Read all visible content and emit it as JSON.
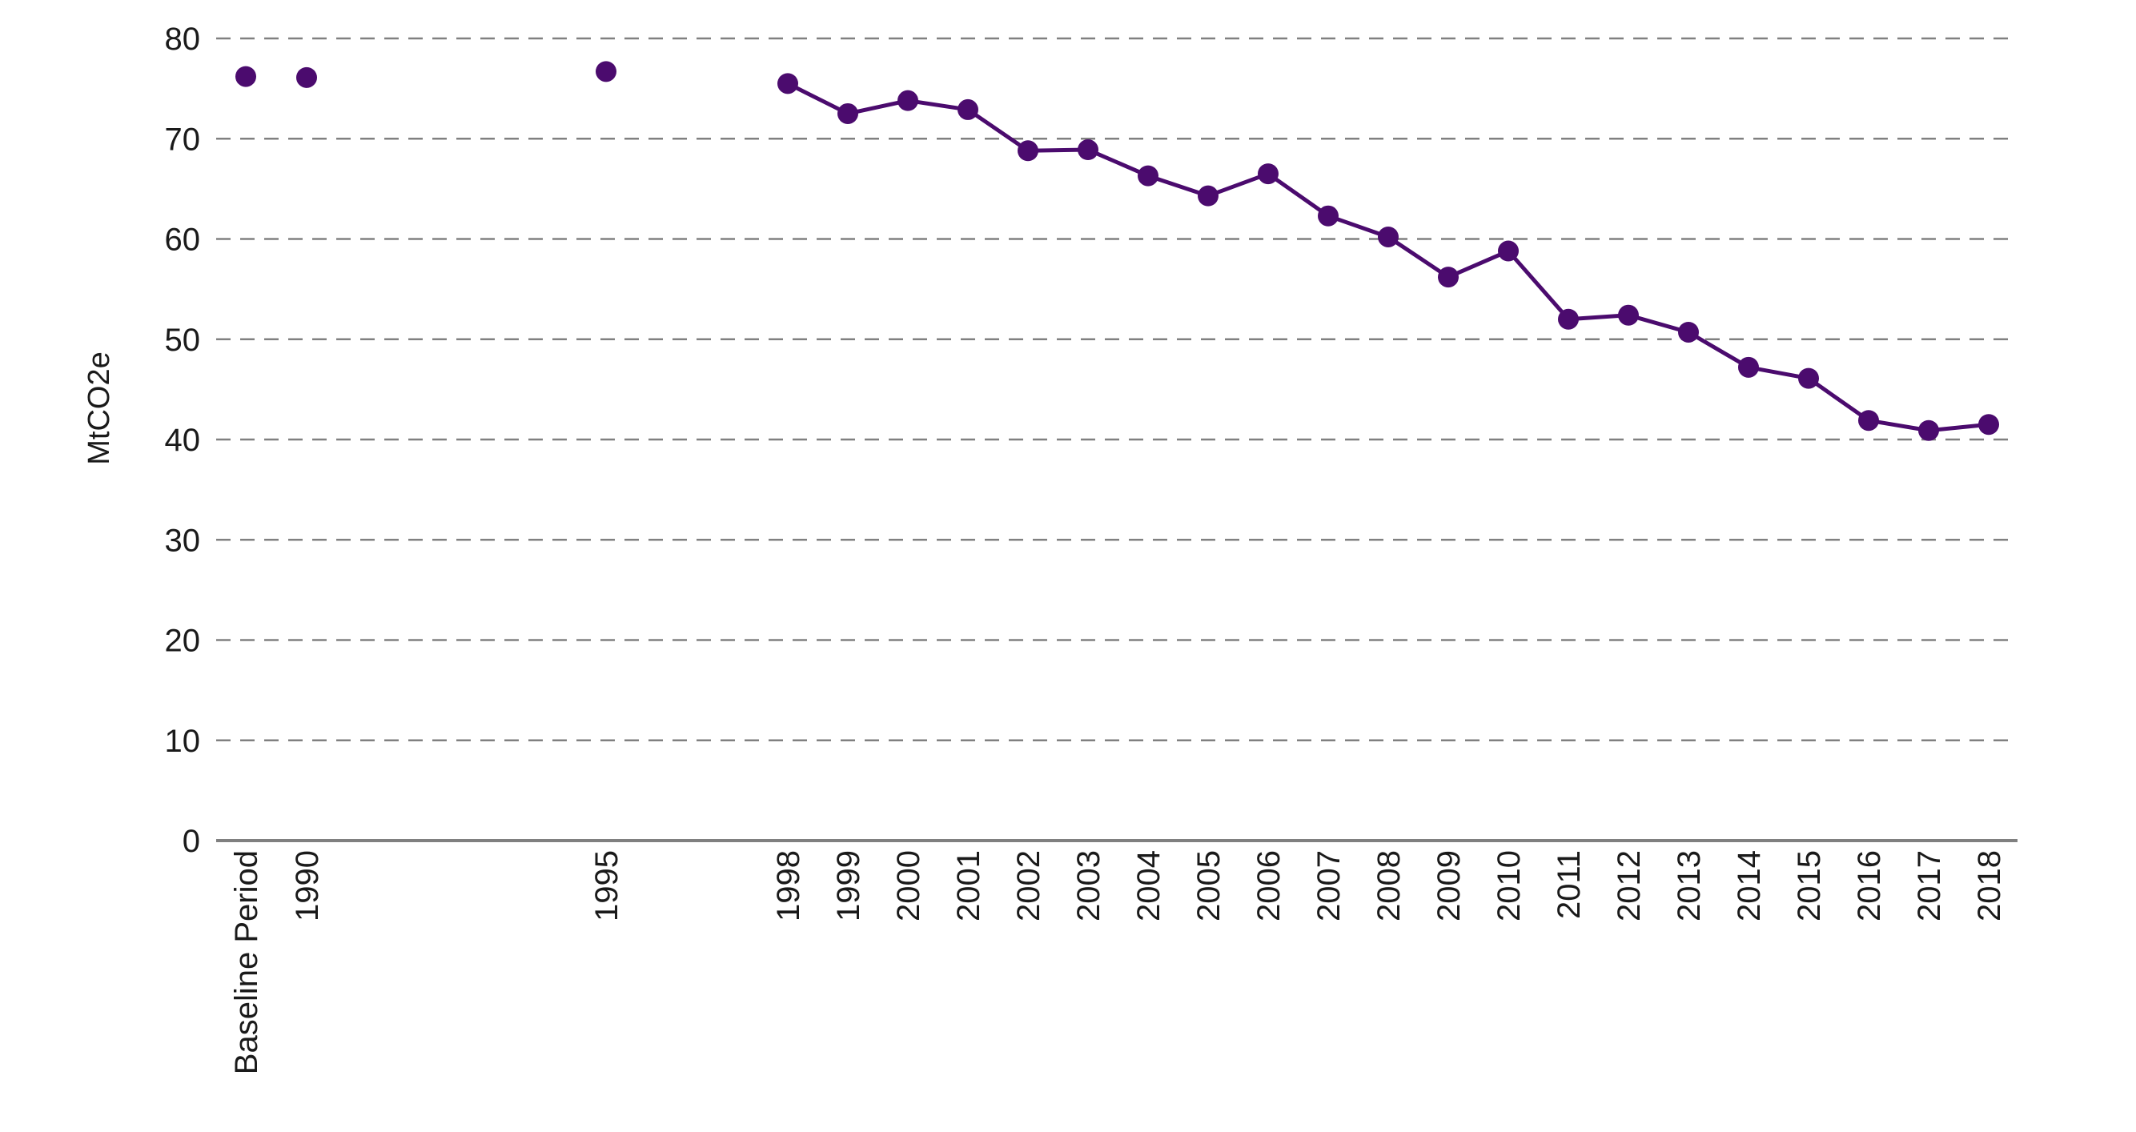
{
  "chart_data": {
    "type": "line",
    "title": "",
    "xlabel": "",
    "ylabel": "MtCO2e",
    "ylim": [
      0,
      80
    ],
    "yticks": [
      0,
      10,
      20,
      30,
      40,
      50,
      60,
      70,
      80
    ],
    "grid": true,
    "grid_style": "dashed",
    "legend": "none",
    "colors": {
      "series": "#4b0b6e",
      "grid": "#808080",
      "axis": "#808080",
      "text": "#1a1a1a"
    },
    "categories": [
      "Baseline Period",
      "1990",
      "1995",
      "1998",
      "1999",
      "2000",
      "2001",
      "2002",
      "2003",
      "2004",
      "2005",
      "2006",
      "2007",
      "2008",
      "2009",
      "2010",
      "2011",
      "2012",
      "2013",
      "2014",
      "2015",
      "2016",
      "2017",
      "2018"
    ],
    "series": [
      {
        "values": [
          76.2,
          76.1,
          76.7,
          75.5,
          72.5,
          73.8,
          72.9,
          68.8,
          68.9,
          66.3,
          64.3,
          66.5,
          62.3,
          60.2,
          56.2,
          58.8,
          52.0,
          52.4,
          50.7,
          47.2,
          46.1,
          41.9,
          40.9,
          41.5
        ],
        "connected_from": "1998"
      }
    ]
  }
}
